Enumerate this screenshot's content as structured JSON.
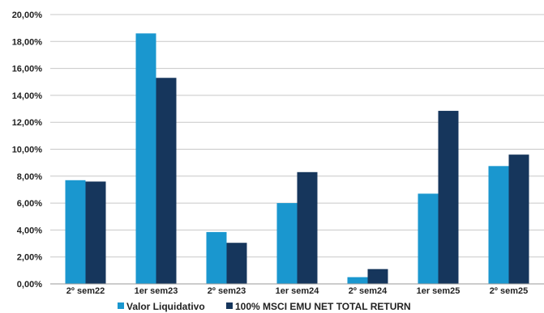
{
  "chart_data": {
    "type": "bar",
    "categories": [
      "2º sem22",
      "1er sem23",
      "2º sem23",
      "1er sem24",
      "2º sem24",
      "1er sem25",
      "2º sem25"
    ],
    "series": [
      {
        "name": "Valor Liquidativo",
        "color": "#1a97cf",
        "values": [
          7.7,
          18.6,
          3.85,
          6.0,
          0.5,
          6.7,
          8.75
        ]
      },
      {
        "name": "100% MSCI EMU NET TOTAL RETURN",
        "color": "#16365c",
        "values": [
          7.6,
          15.3,
          3.05,
          8.3,
          1.1,
          12.85,
          9.6
        ]
      }
    ],
    "ylim": [
      0,
      20
    ],
    "yticks": [
      "0,00%",
      "2,00%",
      "4,00%",
      "6,00%",
      "8,00%",
      "10,00%",
      "12,00%",
      "14,00%",
      "16,00%",
      "18,00%",
      "20,00%"
    ],
    "grid": true,
    "legend": "bottom"
  }
}
